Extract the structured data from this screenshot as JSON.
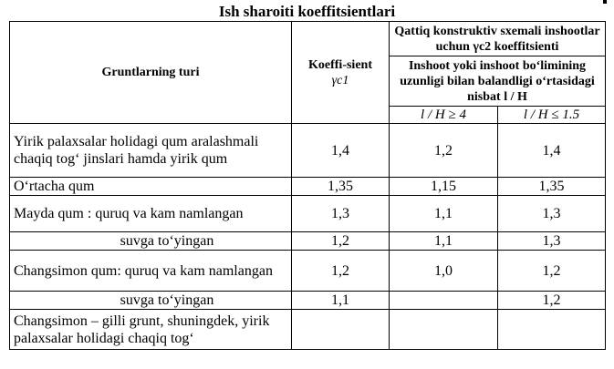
{
  "title": "Ish sharoiti koeffitsientlari",
  "header": {
    "soil_type": "Gruntlarning turi",
    "coef_label": "Koeffi-sient",
    "coef_symbol": "γc1",
    "rigid_group": "Qattiq konstruktiv sxemali inshootlar uchun γc2 koeffitsienti",
    "ratio_group": "Inshoot yoki inshoot bo‘limining uzunligi bilan balandligi o‘rtasidagi nisbat l / H",
    "ratio_ge4": "l / H ≥ 4",
    "ratio_le15": "l / H ≤ 1.5"
  },
  "rows": [
    {
      "soil": "Yirik palaxsalar holidagi qum aralashmali chaqiq tog‘ jinslari hamda yirik qum",
      "c1": "1,4",
      "ge4": "1,2",
      "le15": "1,4",
      "sub": false
    },
    {
      "soil": "O‘rtacha qum",
      "c1": "1,35",
      "ge4": "1,15",
      "le15": "1,35",
      "sub": false
    },
    {
      "soil": "Mayda qum : quruq va kam namlangan",
      "c1": "1,3",
      "ge4": "1,1",
      "le15": "1,3",
      "sub": false
    },
    {
      "soil": "suvga to‘yingan",
      "c1": "1,2",
      "ge4": "1,1",
      "le15": "1,3",
      "sub": true
    },
    {
      "soil": "Changsimon qum: quruq va kam namlangan",
      "c1": "1,2",
      "ge4": "1,0",
      "le15": "1,2",
      "sub": false
    },
    {
      "soil": "suvga to‘yingan",
      "c1": "1,1",
      "ge4": "",
      "le15": "1,2",
      "sub": true
    },
    {
      "soil": "Changsimon – gilli grunt, shuningdek, yirik palaxsalar holidagi chaqiq tog‘",
      "c1": "",
      "ge4": "",
      "le15": "",
      "sub": false
    }
  ]
}
